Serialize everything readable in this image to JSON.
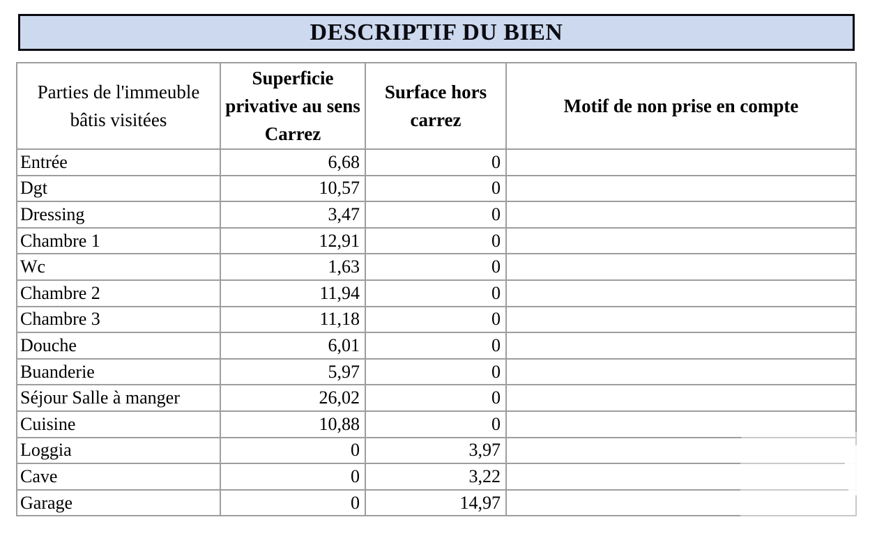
{
  "banner": {
    "title": "DESCRIPTIF DU BIEN",
    "background_color": "#ccd9ee",
    "border_color": "#0a0a0f"
  },
  "table": {
    "border_color": "#9d9d9d",
    "columns": [
      {
        "label": "Parties de l'immeuble bâtis visitées",
        "bold": false,
        "align": "left"
      },
      {
        "label": "Superficie privative au sens Carrez",
        "bold": true,
        "align": "right"
      },
      {
        "label": "Surface hors carrez",
        "bold": true,
        "align": "right"
      },
      {
        "label": "Motif de non prise en compte",
        "bold": true,
        "align": "left"
      }
    ],
    "rows": [
      {
        "partie": "Entrée",
        "carrez": "6,68",
        "hors": "0",
        "motif": ""
      },
      {
        "partie": "Dgt",
        "carrez": "10,57",
        "hors": "0",
        "motif": ""
      },
      {
        "partie": "Dressing",
        "carrez": "3,47",
        "hors": "0",
        "motif": ""
      },
      {
        "partie": "Chambre 1",
        "carrez": "12,91",
        "hors": "0",
        "motif": ""
      },
      {
        "partie": "Wc",
        "carrez": "1,63",
        "hors": "0",
        "motif": ""
      },
      {
        "partie": "Chambre 2",
        "carrez": "11,94",
        "hors": "0",
        "motif": ""
      },
      {
        "partie": "Chambre 3",
        "carrez": "11,18",
        "hors": "0",
        "motif": ""
      },
      {
        "partie": "Douche",
        "carrez": "6,01",
        "hors": "0",
        "motif": ""
      },
      {
        "partie": "Buanderie",
        "carrez": "5,97",
        "hors": "0",
        "motif": ""
      },
      {
        "partie": "Séjour Salle à manger",
        "carrez": "26,02",
        "hors": "0",
        "motif": ""
      },
      {
        "partie": "Cuisine",
        "carrez": "10,88",
        "hors": "0",
        "motif": ""
      },
      {
        "partie": "Loggia",
        "carrez": "0",
        "hors": "3,97",
        "motif": ""
      },
      {
        "partie": "Cave",
        "carrez": "0",
        "hors": "3,22",
        "motif": ""
      },
      {
        "partie": "Garage",
        "carrez": "0",
        "hors": "14,97",
        "motif": ""
      }
    ]
  },
  "watermark": {
    "color": "#ffffff"
  }
}
